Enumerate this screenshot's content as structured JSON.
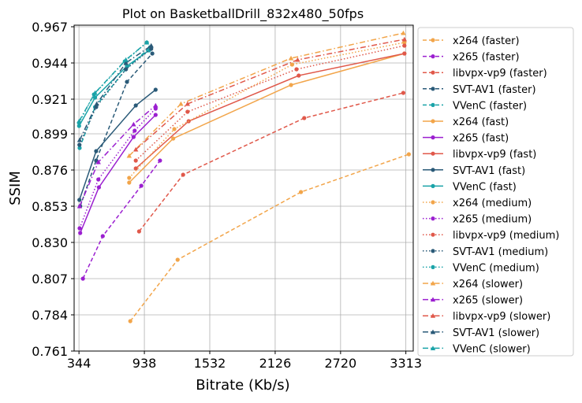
{
  "chart_data": {
    "type": "line",
    "title": "Plot on BasketballDrill_832x480_50fps",
    "xlabel": "Bitrate (Kb/s)",
    "ylabel": "SSIM",
    "xlim": [
      300,
      3380
    ],
    "ylim": [
      0.761,
      0.968
    ],
    "xticks": [
      344,
      938,
      1532,
      2126,
      2720,
      3313
    ],
    "xtick_labels": [
      "344",
      "938",
      "1532",
      "2126",
      "2720",
      "3313"
    ],
    "yticks": [
      0.761,
      0.784,
      0.807,
      0.83,
      0.853,
      0.876,
      0.899,
      0.921,
      0.944,
      0.967
    ],
    "ytick_labels": [
      "0.761",
      "0.784",
      "0.807",
      "0.830",
      "0.853",
      "0.876",
      "0.899",
      "0.921",
      "0.944",
      "0.967"
    ],
    "grid": true,
    "legend_position": "outside-right",
    "series": [
      {
        "name": "x264 (faster)",
        "color": "#f2a54a",
        "dash": "dashed",
        "marker": "circle",
        "x": [
          810,
          1240,
          2360,
          3340
        ],
        "y": [
          0.78,
          0.819,
          0.862,
          0.886
        ]
      },
      {
        "name": "x265 (faster)",
        "color": "#9b1fd0",
        "dash": "dashed",
        "marker": "circle",
        "x": [
          380,
          560,
          910,
          1080
        ],
        "y": [
          0.807,
          0.834,
          0.866,
          0.882
        ]
      },
      {
        "name": "libvpx-vp9 (faster)",
        "color": "#e0584a",
        "dash": "dashed",
        "marker": "circle",
        "x": [
          890,
          1290,
          2390,
          3290
        ],
        "y": [
          0.837,
          0.873,
          0.909,
          0.925
        ]
      },
      {
        "name": "SVT-AV1 (faster)",
        "color": "#2a5a78",
        "dash": "dashed",
        "marker": "circle",
        "x": [
          355,
          500,
          780,
          1010
        ],
        "y": [
          0.853,
          0.882,
          0.932,
          0.95
        ]
      },
      {
        "name": "VVenC (faster)",
        "color": "#1aa3a8",
        "dash": "dashed",
        "marker": "circle",
        "x": [
          350,
          490,
          770,
          990
        ],
        "y": [
          0.89,
          0.916,
          0.94,
          0.954
        ]
      },
      {
        "name": "x264 (fast)",
        "color": "#f2a54a",
        "dash": "solid",
        "marker": "circle",
        "x": [
          800,
          1200,
          2270,
          3300
        ],
        "y": [
          0.868,
          0.896,
          0.93,
          0.95
        ]
      },
      {
        "name": "x265 (fast)",
        "color": "#9b1fd0",
        "dash": "solid",
        "marker": "circle",
        "x": [
          355,
          525,
          840,
          1040
        ],
        "y": [
          0.836,
          0.865,
          0.897,
          0.911
        ]
      },
      {
        "name": "libvpx-vp9 (fast)",
        "color": "#e0584a",
        "dash": "solid",
        "marker": "circle",
        "x": [
          860,
          1340,
          2340,
          3300
        ],
        "y": [
          0.877,
          0.907,
          0.936,
          0.95
        ]
      },
      {
        "name": "SVT-AV1 (fast)",
        "color": "#2a5a78",
        "dash": "solid",
        "marker": "circle",
        "x": [
          348,
          500,
          860,
          1040
        ],
        "y": [
          0.857,
          0.888,
          0.917,
          0.927
        ]
      },
      {
        "name": "VVenC (fast)",
        "color": "#1aa3a8",
        "dash": "solid",
        "marker": "circle",
        "x": [
          345,
          490,
          780,
          980
        ],
        "y": [
          0.904,
          0.922,
          0.942,
          0.952
        ]
      },
      {
        "name": "x264 (medium)",
        "color": "#f2a54a",
        "dash": "dotted",
        "marker": "circle",
        "x": [
          800,
          1210,
          2280,
          3300
        ],
        "y": [
          0.871,
          0.902,
          0.943,
          0.957
        ]
      },
      {
        "name": "x265 (medium)",
        "color": "#9b1fd0",
        "dash": "dotted",
        "marker": "circle",
        "x": [
          350,
          520,
          850,
          1040
        ],
        "y": [
          0.839,
          0.87,
          0.901,
          0.915
        ]
      },
      {
        "name": "libvpx-vp9 (medium)",
        "color": "#e0584a",
        "dash": "dotted",
        "marker": "circle",
        "x": [
          860,
          1330,
          2320,
          3300
        ],
        "y": [
          0.882,
          0.913,
          0.94,
          0.955
        ]
      },
      {
        "name": "SVT-AV1 (medium)",
        "color": "#2a5a78",
        "dash": "dotted",
        "marker": "circle",
        "x": [
          348,
          500,
          770,
          1000
        ],
        "y": [
          0.892,
          0.916,
          0.94,
          0.953
        ]
      },
      {
        "name": "VVenC (medium)",
        "color": "#1aa3a8",
        "dash": "dotted",
        "marker": "circle",
        "x": [
          345,
          480,
          760,
          960
        ],
        "y": [
          0.906,
          0.924,
          0.945,
          0.957
        ]
      },
      {
        "name": "x264 (slower)",
        "color": "#f2a54a",
        "dash": "dashdot",
        "marker": "triangle",
        "x": [
          800,
          1270,
          2270,
          3290
        ],
        "y": [
          0.885,
          0.918,
          0.947,
          0.963
        ]
      },
      {
        "name": "x265 (slower)",
        "color": "#9b1fd0",
        "dash": "dashdot",
        "marker": "triangle",
        "x": [
          350,
          520,
          840,
          1040
        ],
        "y": [
          0.853,
          0.881,
          0.905,
          0.917
        ]
      },
      {
        "name": "libvpx-vp9 (slower)",
        "color": "#e0584a",
        "dash": "dashdot",
        "marker": "triangle",
        "x": [
          860,
          1330,
          2330,
          3300
        ],
        "y": [
          0.889,
          0.918,
          0.946,
          0.959
        ]
      },
      {
        "name": "SVT-AV1 (slower)",
        "color": "#2a5a78",
        "dash": "dashdot",
        "marker": "triangle",
        "x": [
          350,
          505,
          770,
          1000
        ],
        "y": [
          0.895,
          0.918,
          0.944,
          0.955
        ]
      },
      {
        "name": "VVenC (slower)",
        "color": "#1aa3a8",
        "dash": "dashdot",
        "marker": "triangle",
        "x": [
          345,
          490,
          770,
          960
        ],
        "y": [
          0.907,
          0.925,
          0.946,
          0.957
        ]
      }
    ]
  }
}
